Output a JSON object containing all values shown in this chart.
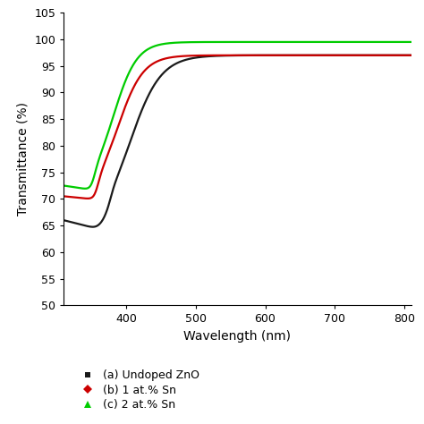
{
  "xlabel": "Wavelength (nm)",
  "ylabel": "Transmittance (%)",
  "xlim": [
    310,
    810
  ],
  "ylim": [
    50,
    105
  ],
  "yticks": [
    50,
    55,
    60,
    65,
    70,
    75,
    80,
    85,
    90,
    95,
    100,
    105
  ],
  "xticks": [
    400,
    500,
    600,
    700,
    800
  ],
  "colors": {
    "undoped": "#1a1a1a",
    "sn1": "#cc0000",
    "sn2": "#00cc00"
  },
  "legend": [
    {
      "label": "(a) Undoped ZnO",
      "color": "#1a1a1a",
      "marker": "s"
    },
    {
      "label": "(b) 1 at.% Sn",
      "color": "#cc0000",
      "marker": "D"
    },
    {
      "label": "(c) 2 at.% Sn",
      "color": "#00cc00",
      "marker": "^"
    }
  ],
  "figsize": [
    4.74,
    4.74
  ],
  "dpi": 100
}
